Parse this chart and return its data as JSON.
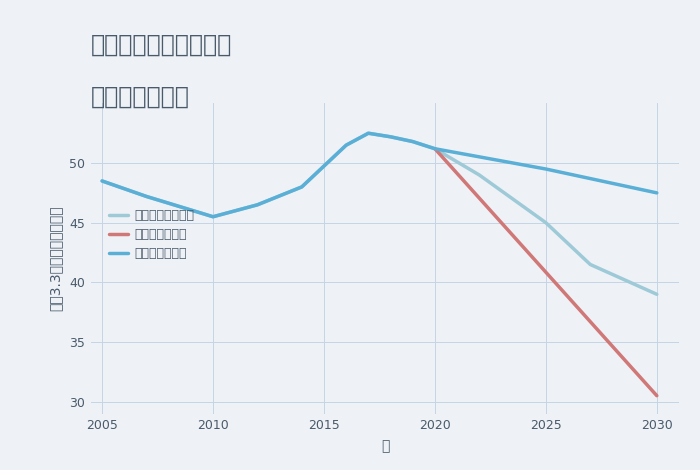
{
  "title_line1": "兵庫県西宮市国見台の",
  "title_line2": "土地の価格推移",
  "xlabel": "年",
  "ylabel": "坪（3.3㎡）単価（万円）",
  "background_color": "#eef2f7",
  "plot_background": "#eef2f7",
  "good_scenario": {
    "label": "グッドシナリオ",
    "color": "#5aafd6",
    "linewidth": 2.5,
    "x": [
      2005,
      2007,
      2010,
      2012,
      2014,
      2016,
      2017,
      2018,
      2019,
      2020,
      2025,
      2030
    ],
    "y": [
      48.5,
      47.2,
      45.5,
      46.5,
      48.0,
      51.5,
      52.5,
      52.2,
      51.8,
      51.2,
      49.5,
      47.5
    ]
  },
  "bad_scenario": {
    "label": "バッドシナリオ",
    "color": "#d07878",
    "linewidth": 2.5,
    "x": [
      2020,
      2030
    ],
    "y": [
      51.2,
      30.5
    ]
  },
  "normal_scenario": {
    "label": "ノーマルシナリオ",
    "color": "#9ecad8",
    "linewidth": 2.5,
    "x": [
      2005,
      2007,
      2010,
      2012,
      2014,
      2016,
      2017,
      2018,
      2019,
      2020,
      2022,
      2025,
      2027,
      2030
    ],
    "y": [
      48.5,
      47.2,
      45.5,
      46.5,
      48.0,
      51.5,
      52.5,
      52.2,
      51.8,
      51.2,
      49.0,
      45.0,
      41.5,
      39.0
    ]
  },
  "ylim": [
    29,
    55
  ],
  "yticks": [
    30,
    35,
    40,
    45,
    50
  ],
  "xlim": [
    2004.5,
    2031
  ],
  "xticks": [
    2005,
    2010,
    2015,
    2020,
    2025,
    2030
  ],
  "title_fontsize": 17,
  "axis_label_fontsize": 10,
  "tick_fontsize": 9,
  "legend_fontsize": 9,
  "grid_color": "#c5d5e5",
  "grid_alpha": 1.0,
  "text_color": "#4a5a6a"
}
